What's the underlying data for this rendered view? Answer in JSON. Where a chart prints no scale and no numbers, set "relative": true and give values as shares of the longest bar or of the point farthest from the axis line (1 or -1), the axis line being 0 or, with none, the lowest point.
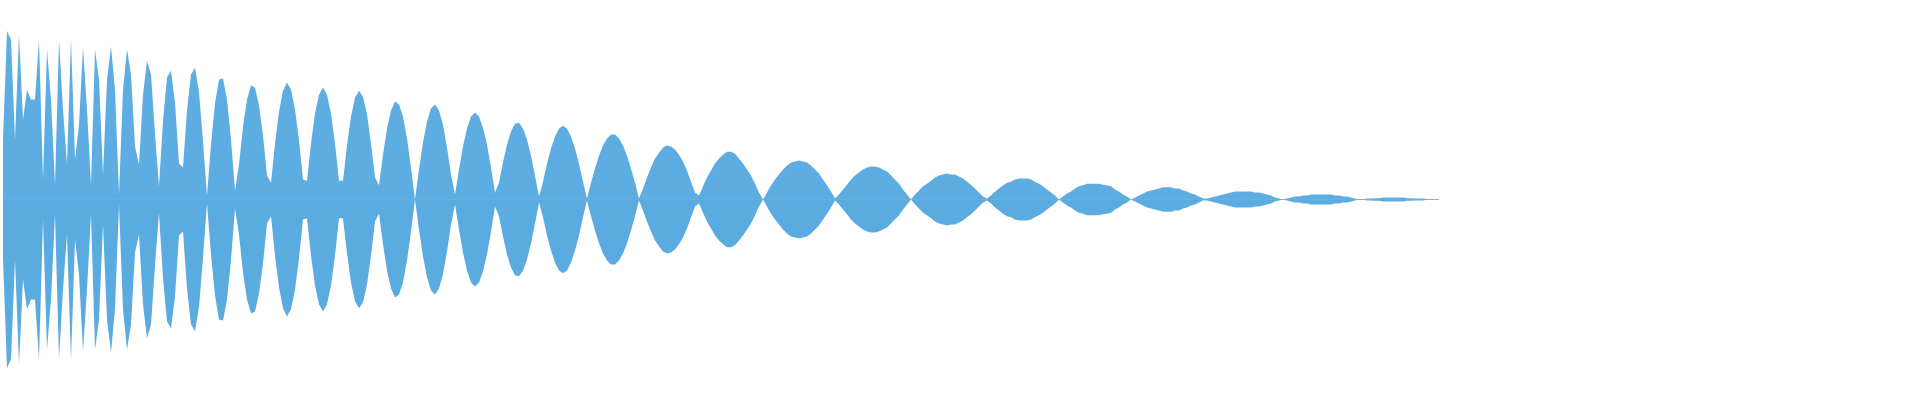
{
  "chart_data": {
    "type": "area",
    "relative": true,
    "categories": [
      null,
      null,
      null,
      null,
      null,
      null,
      null,
      null,
      null,
      null,
      null,
      null,
      null,
      null,
      null,
      null,
      null,
      null,
      null,
      null,
      null,
      null,
      null,
      null,
      null,
      null,
      null,
      null,
      null,
      null,
      null,
      null,
      null,
      null,
      null,
      null,
      null,
      null,
      null,
      null,
      null,
      null,
      null,
      null,
      null,
      null,
      null,
      null,
      null,
      null,
      null,
      null,
      null,
      null,
      null,
      null,
      null,
      null,
      null,
      null,
      null,
      null,
      null,
      null,
      null,
      null,
      null,
      null,
      null,
      null,
      null,
      null,
      null,
      null,
      null,
      null,
      null,
      null,
      null,
      null,
      null,
      null,
      null,
      null,
      null,
      null,
      null,
      null,
      null,
      null,
      null,
      null,
      null,
      null,
      null,
      null,
      null,
      null,
      null,
      null,
      null,
      null,
      null,
      null,
      null,
      null,
      null,
      null,
      null,
      null,
      null,
      null,
      null,
      null,
      null,
      null,
      null,
      null,
      null,
      null,
      null,
      null,
      null,
      null,
      null,
      null,
      null,
      null,
      null,
      null,
      null,
      null,
      null,
      null,
      null,
      null,
      null,
      null,
      null,
      null,
      null,
      null,
      null,
      null,
      null,
      null,
      null,
      null,
      null,
      null,
      null,
      null,
      null,
      null,
      null,
      null,
      null,
      null,
      null,
      null,
      null,
      null,
      null,
      null,
      null,
      null,
      null,
      null,
      null,
      null,
      null,
      null,
      null,
      null,
      null,
      null,
      null,
      null,
      null,
      null,
      null,
      null,
      null,
      null,
      null,
      null,
      null,
      null,
      null,
      null,
      null,
      null,
      null,
      null,
      null,
      null,
      null,
      null,
      null,
      null,
      null,
      null,
      null,
      null,
      null,
      null,
      null,
      null,
      null,
      null,
      null,
      null,
      null,
      null,
      null,
      null,
      null,
      null,
      null,
      null,
      null,
      null,
      null,
      null,
      null,
      null,
      null,
      null,
      null,
      null,
      null,
      null,
      null,
      null,
      null,
      null,
      null,
      null,
      null,
      null,
      null,
      null,
      null,
      null,
      null,
      null,
      null,
      null,
      null,
      null,
      null,
      null,
      null,
      null,
      null,
      null,
      null,
      null,
      null,
      null,
      null,
      null,
      null,
      null,
      null,
      null,
      null,
      null,
      null,
      null,
      null,
      null,
      null,
      null,
      null,
      null,
      null,
      null,
      null,
      null,
      null,
      null,
      null,
      null,
      null,
      null,
      null,
      null,
      null,
      null,
      null,
      null,
      null,
      null,
      null,
      null,
      null,
      null,
      null,
      null,
      null,
      null,
      null,
      null,
      null,
      null,
      null,
      null,
      null,
      null,
      null,
      null,
      null,
      null,
      null,
      null,
      null,
      null,
      null,
      null,
      null,
      null,
      null,
      null,
      null,
      null,
      null,
      null,
      null,
      null,
      null,
      null,
      null,
      null,
      null,
      null,
      null,
      null,
      null,
      null,
      null,
      null,
      null,
      null,
      null,
      null,
      null,
      null,
      null,
      null,
      null,
      null,
      null,
      null,
      null,
      null,
      null,
      null,
      null,
      null
    ],
    "series": [
      {
        "color": "#5dade2",
        "values": [
          0.356,
          1,
          0.948,
          0.356,
          0.978,
          0.474,
          0.652,
          0.594,
          0.594,
          0.948,
          0.118,
          0.89,
          0.594,
          0.088,
          0.948,
          0.534,
          0.208,
          0.954,
          0.238,
          0.444,
          0.902,
          0.534,
          0.088,
          0.89,
          0.712,
          0.148,
          0.712,
          0.908,
          0.652,
          0.03,
          0.652,
          0.89,
          0.742,
          0.314,
          0.208,
          0.622,
          0.824,
          0.742,
          0.392,
          0.078,
          0.468,
          0.724,
          0.764,
          0.576,
          0.214,
          0.19,
          0.528,
          0.742,
          0.782,
          0.64,
          0.344,
          0.024,
          0.326,
          0.57,
          0.712,
          0.718,
          0.594,
          0.356,
          0.054,
          0.208,
          0.432,
          0.594,
          0.676,
          0.664,
          0.558,
          0.38,
          0.142,
          0.1,
          0.332,
          0.522,
          0.646,
          0.694,
          0.652,
          0.534,
          0.35,
          0.118,
          0.112,
          0.332,
          0.51,
          0.622,
          0.664,
          0.622,
          0.51,
          0.332,
          0.112,
          0.112,
          0.32,
          0.492,
          0.604,
          0.646,
          0.61,
          0.504,
          0.332,
          0.13,
          0.084,
          0.266,
          0.422,
          0.528,
          0.582,
          0.564,
          0.492,
          0.362,
          0.19,
          0,
          0.178,
          0.338,
          0.462,
          0.54,
          0.564,
          0.528,
          0.444,
          0.308,
          0.148,
          0.03,
          0.178,
          0.314,
          0.422,
          0.492,
          0.516,
          0.492,
          0.426,
          0.326,
          0.19,
          0.042,
          0.1,
          0.22,
          0.326,
          0.404,
          0.45,
          0.456,
          0.422,
          0.356,
          0.26,
          0.142,
          0.018,
          0.106,
          0.214,
          0.302,
          0.374,
          0.422,
          0.438,
          0.422,
          0.374,
          0.302,
          0.214,
          0.106,
          0.006,
          0.1,
          0.184,
          0.26,
          0.32,
          0.362,
          0.386,
          0.386,
          0.362,
          0.32,
          0.26,
          0.184,
          0.1,
          0.006,
          0.066,
          0.13,
          0.19,
          0.244,
          0.278,
          0.308,
          0.32,
          0.314,
          0.296,
          0.266,
          0.226,
          0.172,
          0.106,
          0.042,
          0.024,
          0.078,
          0.13,
          0.172,
          0.214,
          0.244,
          0.266,
          0.284,
          0.284,
          0.272,
          0.244,
          0.214,
          0.178,
          0.142,
          0.094,
          0.042,
          0,
          0.042,
          0.084,
          0.118,
          0.148,
          0.178,
          0.202,
          0.22,
          0.226,
          0.232,
          0.226,
          0.22,
          0.202,
          0.178,
          0.154,
          0.118,
          0.084,
          0.048,
          0.006,
          0.03,
          0.06,
          0.088,
          0.118,
          0.142,
          0.16,
          0.178,
          0.19,
          0.196,
          0.196,
          0.19,
          0.178,
          0.166,
          0.142,
          0.118,
          0.094,
          0.06,
          0.03,
          0,
          0.03,
          0.054,
          0.078,
          0.094,
          0.112,
          0.13,
          0.142,
          0.148,
          0.154,
          0.148,
          0.148,
          0.136,
          0.124,
          0.106,
          0.088,
          0.066,
          0.042,
          0.018,
          0.006,
          0.024,
          0.048,
          0.066,
          0.084,
          0.1,
          0.106,
          0.118,
          0.124,
          0.124,
          0.124,
          0.118,
          0.106,
          0.094,
          0.078,
          0.06,
          0.042,
          0.024,
          0,
          0.018,
          0.036,
          0.048,
          0.066,
          0.078,
          0.084,
          0.094,
          0.094,
          0.094,
          0.094,
          0.088,
          0.084,
          0.078,
          0.06,
          0.048,
          0.03,
          0.018,
          0,
          0.012,
          0.024,
          0.036,
          0.048,
          0.054,
          0.06,
          0.066,
          0.072,
          0.072,
          0.072,
          0.066,
          0.066,
          0.054,
          0.048,
          0.036,
          0.03,
          0.018,
          0.006,
          0.006,
          0.012,
          0.018,
          0.024,
          0.03,
          0.036,
          0.042,
          0.048,
          0.048,
          0.048,
          0.048,
          0.048,
          0.042,
          0.042,
          0.036,
          0.03,
          0.024,
          0.012,
          0.006,
          0,
          0.006,
          0.012,
          0.018,
          0.018,
          0.024,
          0.024,
          0.03,
          0.03,
          0.03,
          0.03,
          0.03,
          0.03,
          0.024,
          0.024,
          0.018,
          0.018,
          0.012,
          0.006,
          0,
          0.002,
          0.006,
          0.006,
          0.008,
          0.008,
          0.012,
          0.012,
          0.012,
          0.012,
          0.012,
          0.012,
          0.008,
          0.008,
          0.006,
          0.006,
          0.006,
          0.002,
          0.002,
          0.002,
          0
        ]
      },
      {
        "color": "#5aabe0",
        "values": [
          -0.356,
          -1,
          -0.948,
          -0.356,
          -0.978,
          -0.474,
          -0.652,
          -0.594,
          -0.594,
          -0.948,
          -0.118,
          -0.89,
          -0.594,
          -0.088,
          -0.948,
          -0.534,
          -0.208,
          -0.954,
          -0.238,
          -0.444,
          -0.902,
          -0.534,
          -0.088,
          -0.89,
          -0.712,
          -0.148,
          -0.712,
          -0.908,
          -0.652,
          -0.03,
          -0.652,
          -0.89,
          -0.742,
          -0.314,
          -0.208,
          -0.622,
          -0.824,
          -0.742,
          -0.392,
          -0.078,
          -0.468,
          -0.724,
          -0.764,
          -0.576,
          -0.214,
          -0.19,
          -0.528,
          -0.742,
          -0.782,
          -0.64,
          -0.344,
          -0.024,
          -0.326,
          -0.57,
          -0.712,
          -0.718,
          -0.594,
          -0.356,
          -0.054,
          -0.208,
          -0.432,
          -0.594,
          -0.676,
          -0.664,
          -0.558,
          -0.38,
          -0.142,
          -0.1,
          -0.332,
          -0.522,
          -0.646,
          -0.694,
          -0.652,
          -0.534,
          -0.35,
          -0.118,
          -0.112,
          -0.332,
          -0.51,
          -0.622,
          -0.664,
          -0.622,
          -0.51,
          -0.332,
          -0.112,
          -0.112,
          -0.32,
          -0.492,
          -0.604,
          -0.646,
          -0.61,
          -0.504,
          -0.332,
          -0.13,
          -0.084,
          -0.266,
          -0.422,
          -0.528,
          -0.582,
          -0.564,
          -0.492,
          -0.362,
          -0.19,
          0,
          -0.178,
          -0.338,
          -0.462,
          -0.54,
          -0.564,
          -0.528,
          -0.444,
          -0.308,
          -0.148,
          -0.03,
          -0.178,
          -0.314,
          -0.422,
          -0.492,
          -0.516,
          -0.492,
          -0.426,
          -0.326,
          -0.19,
          -0.042,
          -0.1,
          -0.22,
          -0.326,
          -0.404,
          -0.45,
          -0.456,
          -0.422,
          -0.356,
          -0.26,
          -0.142,
          -0.018,
          -0.106,
          -0.214,
          -0.302,
          -0.374,
          -0.422,
          -0.438,
          -0.422,
          -0.374,
          -0.302,
          -0.214,
          -0.106,
          -0.006,
          -0.1,
          -0.184,
          -0.26,
          -0.32,
          -0.362,
          -0.386,
          -0.386,
          -0.362,
          -0.32,
          -0.26,
          -0.184,
          -0.1,
          -0.006,
          -0.066,
          -0.13,
          -0.19,
          -0.244,
          -0.278,
          -0.308,
          -0.32,
          -0.314,
          -0.296,
          -0.266,
          -0.226,
          -0.172,
          -0.106,
          -0.042,
          -0.024,
          -0.078,
          -0.13,
          -0.172,
          -0.214,
          -0.244,
          -0.266,
          -0.284,
          -0.284,
          -0.272,
          -0.244,
          -0.214,
          -0.178,
          -0.142,
          -0.094,
          -0.042,
          0,
          -0.042,
          -0.084,
          -0.118,
          -0.148,
          -0.178,
          -0.202,
          -0.22,
          -0.226,
          -0.232,
          -0.226,
          -0.22,
          -0.202,
          -0.178,
          -0.154,
          -0.118,
          -0.084,
          -0.048,
          -0.006,
          -0.03,
          -0.06,
          -0.088,
          -0.118,
          -0.142,
          -0.16,
          -0.178,
          -0.19,
          -0.196,
          -0.196,
          -0.19,
          -0.178,
          -0.166,
          -0.142,
          -0.118,
          -0.094,
          -0.06,
          -0.03,
          0,
          -0.03,
          -0.054,
          -0.078,
          -0.094,
          -0.112,
          -0.13,
          -0.142,
          -0.148,
          -0.154,
          -0.148,
          -0.148,
          -0.136,
          -0.124,
          -0.106,
          -0.088,
          -0.066,
          -0.042,
          -0.018,
          -0.006,
          -0.024,
          -0.048,
          -0.066,
          -0.084,
          -0.1,
          -0.106,
          -0.118,
          -0.124,
          -0.124,
          -0.124,
          -0.118,
          -0.106,
          -0.094,
          -0.078,
          -0.06,
          -0.042,
          -0.024,
          0,
          -0.018,
          -0.036,
          -0.048,
          -0.066,
          -0.078,
          -0.084,
          -0.094,
          -0.094,
          -0.094,
          -0.094,
          -0.088,
          -0.084,
          -0.078,
          -0.06,
          -0.048,
          -0.03,
          -0.018,
          0,
          -0.012,
          -0.024,
          -0.036,
          -0.048,
          -0.054,
          -0.06,
          -0.066,
          -0.072,
          -0.072,
          -0.072,
          -0.066,
          -0.066,
          -0.054,
          -0.048,
          -0.036,
          -0.03,
          -0.018,
          -0.006,
          -0.006,
          -0.012,
          -0.018,
          -0.024,
          -0.03,
          -0.036,
          -0.042,
          -0.048,
          -0.048,
          -0.048,
          -0.048,
          -0.048,
          -0.042,
          -0.042,
          -0.036,
          -0.03,
          -0.024,
          -0.012,
          -0.006,
          0,
          -0.006,
          -0.012,
          -0.018,
          -0.018,
          -0.024,
          -0.024,
          -0.03,
          -0.03,
          -0.03,
          -0.03,
          -0.03,
          -0.03,
          -0.024,
          -0.024,
          -0.018,
          -0.018,
          -0.012,
          -0.006,
          0,
          -0.002,
          -0.006,
          -0.006,
          -0.008,
          -0.008,
          -0.012,
          -0.012,
          -0.012,
          -0.012,
          -0.012,
          -0.012,
          -0.008,
          -0.008,
          -0.006,
          -0.006,
          -0.006,
          -0.002,
          -0.002,
          -0.002,
          0
        ]
      }
    ]
  }
}
